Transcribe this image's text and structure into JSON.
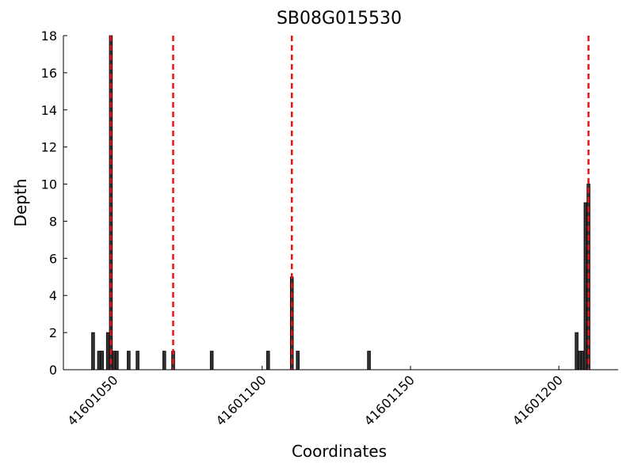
{
  "chart_data": {
    "type": "bar",
    "title": "SB08G015530",
    "x_label": "Coordinates",
    "y_label": "Depth",
    "x": [
      41601043,
      41601045,
      41601046,
      41601048,
      41601049,
      41601050,
      41601051,
      41601055,
      41601058,
      41601067,
      41601070,
      41601083,
      41601102,
      41601110,
      41601112,
      41601136,
      41601206,
      41601207,
      41601208,
      41601209,
      41601210
    ],
    "values": [
      2,
      1,
      1,
      2,
      18,
      1,
      1,
      1,
      1,
      1,
      1,
      1,
      1,
      5,
      1,
      1,
      2,
      1,
      1,
      9,
      10
    ],
    "color": "#333333",
    "reference_lines": [
      41601049,
      41601070,
      41601110,
      41601210
    ],
    "reference_color": "#ee1111",
    "xlim": [
      41601033,
      41601220
    ],
    "ylim": [
      0,
      18
    ],
    "xticks": [
      41601050,
      41601100,
      41601150,
      41601200
    ],
    "yticks": [
      0,
      2,
      4,
      6,
      8,
      10,
      12,
      14,
      16,
      18
    ]
  }
}
